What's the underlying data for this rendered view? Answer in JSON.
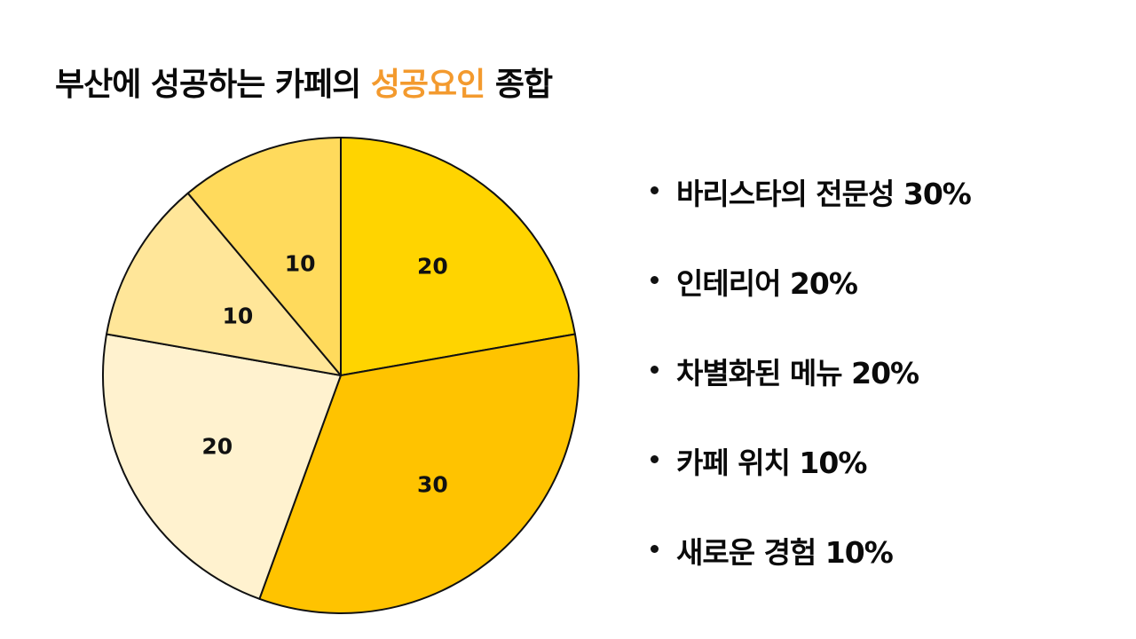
{
  "title": {
    "prefix": "부산에 성공하는 카페의 ",
    "highlight": "성공요인",
    "suffix": " 종합",
    "highlight_color": "#f39a2e"
  },
  "legend": {
    "items": [
      {
        "text": "바리스타의 전문성 30%"
      },
      {
        "text": "인테리어 20%"
      },
      {
        "text": "차별화된 메뉴 20%"
      },
      {
        "text": "카페 위치 10%"
      },
      {
        "text": "새로운 경험 10%"
      }
    ]
  },
  "chart_data": {
    "type": "pie",
    "title": "부산에 성공하는 카페의 성공요인 종합",
    "start_angle_deg": 0,
    "direction": "clockwise",
    "legend_position": "right",
    "slices": [
      {
        "label": "20",
        "value": 20,
        "color": "#ffd400"
      },
      {
        "label": "30",
        "value": 30,
        "color": "#ffc300"
      },
      {
        "label": "20",
        "value": 20,
        "color": "#fff2cf"
      },
      {
        "label": "10",
        "value": 10,
        "color": "#ffe699"
      },
      {
        "label": "10",
        "value": 10,
        "color": "#ffda5c"
      }
    ],
    "categories_from_legend": [
      "바리스타의 전문성",
      "인테리어",
      "차별화된 메뉴",
      "카페 위치",
      "새로운 경험"
    ],
    "legend_percentages": [
      30,
      20,
      20,
      10,
      10
    ]
  }
}
